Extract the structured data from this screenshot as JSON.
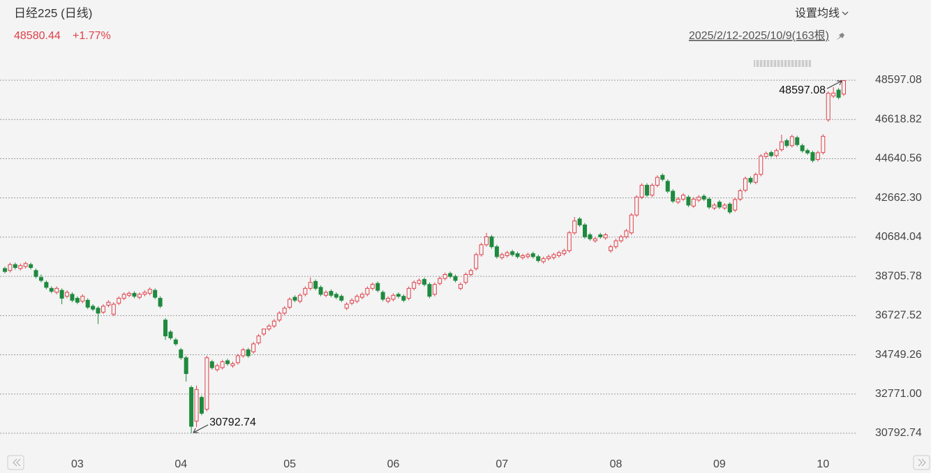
{
  "header": {
    "title": "日经225 (日线)",
    "price": "48580.44",
    "change": "+1.77%",
    "ma_button": "设置均线",
    "range": "2025/2/12-2025/10/9(163根)"
  },
  "chart_data": {
    "type": "candlestick",
    "up_color": "#e0404a",
    "down_color": "#1e8a3e",
    "grid": true,
    "ylim": [
      30792.74,
      48597.08
    ],
    "yticks": [
      30792.74,
      {
        "value": 32771,
        "label": "32771.00"
      },
      34749.26,
      36727.52,
      38705.78,
      40684.04,
      {
        "value": 42662.3,
        "label": "42662.30"
      },
      44640.56,
      46618.82,
      48597.08
    ],
    "categories": [
      null,
      null,
      null,
      null,
      null,
      null,
      null,
      null,
      null,
      null,
      null,
      null,
      null,
      null,
      "03",
      null,
      null,
      null,
      null,
      null,
      null,
      null,
      null,
      null,
      null,
      null,
      null,
      null,
      null,
      null,
      null,
      null,
      null,
      null,
      "04",
      null,
      null,
      null,
      null,
      null,
      null,
      null,
      null,
      null,
      null,
      null,
      null,
      null,
      null,
      null,
      null,
      null,
      null,
      null,
      null,
      "05",
      null,
      null,
      null,
      null,
      null,
      null,
      null,
      null,
      null,
      null,
      null,
      null,
      null,
      null,
      null,
      null,
      null,
      null,
      null,
      "06",
      null,
      null,
      null,
      null,
      null,
      null,
      null,
      null,
      null,
      null,
      null,
      null,
      null,
      null,
      null,
      null,
      null,
      null,
      null,
      null,
      "07",
      null,
      null,
      null,
      null,
      null,
      null,
      null,
      null,
      null,
      null,
      null,
      null,
      null,
      null,
      null,
      null,
      null,
      null,
      null,
      null,
      null,
      "08",
      null,
      null,
      null,
      null,
      null,
      null,
      null,
      null,
      null,
      null,
      null,
      null,
      null,
      null,
      null,
      null,
      null,
      null,
      null,
      "09",
      null,
      null,
      null,
      null,
      null,
      null,
      null,
      null,
      null,
      null,
      null,
      null,
      null,
      null,
      null,
      null,
      null,
      null,
      null,
      "10",
      null,
      null,
      null,
      null
    ],
    "open": [
      39100,
      39000,
      39300,
      39100,
      39200,
      39300,
      39000,
      38650,
      38400,
      38100,
      37900,
      38000,
      37700,
      37800,
      37600,
      37450,
      37500,
      37200,
      37100,
      36900,
      37250,
      36800,
      37350,
      37600,
      37750,
      37850,
      37650,
      37800,
      37850,
      38000,
      37600,
      36500,
      35900,
      35500,
      35000,
      34600,
      33100,
      31400,
      32600,
      32000,
      34400,
      34000,
      34100,
      34450,
      34200,
      34350,
      34700,
      35000,
      34900,
      35350,
      35800,
      36050,
      36200,
      36500,
      36850,
      37150,
      37650,
      37450,
      37800,
      38100,
      38450,
      38150,
      37750,
      37950,
      37800,
      37700,
      37100,
      37350,
      37450,
      37650,
      37800,
      38100,
      38350,
      37900,
      37450,
      37550,
      37800,
      37700,
      37600,
      38100,
      38350,
      38550,
      38300,
      37800,
      38350,
      38600,
      38850,
      38700,
      38100,
      38400,
      38800,
      39100,
      39800,
      40300,
      40700,
      40200,
      39650,
      39750,
      39950,
      39850,
      39650,
      39700,
      39850,
      39700,
      39450,
      39600,
      39650,
      39750,
      39850,
      40000,
      40900,
      41600,
      41300,
      40800,
      40500,
      40800,
      40650,
      40000,
      40200,
      40500,
      40700,
      40900,
      41800,
      42700,
      43300,
      42800,
      43300,
      43800,
      43500,
      43000,
      42450,
      42600,
      42700,
      42250,
      42550,
      42750,
      42600,
      42150,
      42450,
      42150,
      42350,
      42050,
      42600,
      43050,
      43650,
      43450,
      43850,
      44750,
      44950,
      44800,
      45100,
      45550,
      45300,
      45700,
      45300,
      45050,
      44950,
      44600,
      44950,
      46600,
      47800,
      48100,
      47900
    ],
    "high": [
      39200,
      39400,
      39400,
      39350,
      39450,
      39400,
      39100,
      38800,
      38500,
      38200,
      38200,
      38100,
      38000,
      37900,
      37700,
      37800,
      37600,
      37300,
      37200,
      37300,
      37500,
      37400,
      37700,
      37900,
      37950,
      37950,
      37900,
      38000,
      38150,
      38100,
      37700,
      36600,
      36000,
      35600,
      35100,
      34700,
      33200,
      33200,
      32700,
      34700,
      34500,
      34300,
      34500,
      34550,
      34400,
      34800,
      35100,
      35100,
      35400,
      35800,
      35900,
      36300,
      36550,
      36950,
      37200,
      37650,
      37750,
      37850,
      38200,
      38650,
      38550,
      38250,
      38000,
      38050,
      37900,
      37800,
      37400,
      37600,
      37800,
      37900,
      38200,
      38400,
      38450,
      38000,
      37700,
      37850,
      37900,
      37800,
      38200,
      38500,
      38600,
      38650,
      38400,
      38400,
      38700,
      38900,
      38950,
      38800,
      38400,
      38900,
      39100,
      39900,
      40400,
      40900,
      40800,
      40300,
      39900,
      40000,
      40050,
      39950,
      39850,
      39900,
      39950,
      39800,
      39700,
      39800,
      39900,
      40000,
      40100,
      41000,
      41700,
      41700,
      41400,
      40900,
      40700,
      40900,
      40900,
      40300,
      40600,
      40800,
      41100,
      41900,
      42800,
      43400,
      43400,
      43400,
      43800,
      43900,
      43600,
      43100,
      42700,
      42900,
      42800,
      42700,
      42800,
      42850,
      42700,
      42400,
      42550,
      42400,
      42450,
      42680,
      43120,
      43740,
      43750,
      43940,
      44870,
      45000,
      45050,
      45150,
      45850,
      45650,
      45850,
      45800,
      45400,
      45150,
      45050,
      45040,
      45870,
      48040,
      48250,
      48200,
      48597.08
    ],
    "low": [
      38850,
      38900,
      39050,
      39000,
      39100,
      39050,
      38600,
      38400,
      38050,
      37850,
      37800,
      37300,
      37600,
      37400,
      37300,
      37350,
      37050,
      36950,
      36300,
      36800,
      37150,
      36700,
      37250,
      37500,
      37650,
      37600,
      37550,
      37700,
      37750,
      37550,
      37100,
      35500,
      35500,
      35200,
      34500,
      33400,
      30792.74,
      31100,
      31700,
      31900,
      34000,
      33900,
      34000,
      34200,
      34100,
      34250,
      34600,
      34600,
      34800,
      35250,
      35700,
      35950,
      36100,
      36400,
      36750,
      37050,
      37400,
      37350,
      37700,
      38000,
      38000,
      37700,
      37650,
      37650,
      37550,
      37400,
      37000,
      37250,
      37350,
      37550,
      37700,
      38000,
      37900,
      37450,
      37350,
      37450,
      37600,
      37400,
      37500,
      38000,
      38250,
      38200,
      37600,
      37700,
      38250,
      38500,
      38600,
      38400,
      38000,
      38300,
      38700,
      39000,
      39700,
      40200,
      40100,
      39600,
      39550,
      39650,
      39700,
      39600,
      39550,
      39600,
      39600,
      39400,
      39350,
      39500,
      39550,
      39650,
      39750,
      39900,
      40800,
      41200,
      40600,
      40500,
      40400,
      40600,
      40550,
      39900,
      40100,
      40400,
      40600,
      40800,
      41700,
      42600,
      42700,
      42700,
      43200,
      43500,
      42900,
      42400,
      42350,
      42500,
      42200,
      42150,
      42450,
      42500,
      42100,
      42050,
      42100,
      42050,
      41850,
      41950,
      42500,
      42950,
      43350,
      43350,
      43750,
      44650,
      44700,
      44700,
      45000,
      45200,
      45200,
      45250,
      44940,
      44830,
      44450,
      44500,
      44850,
      46500,
      47700,
      47630,
      47800
    ],
    "close": [
      38950,
      39300,
      39150,
      39250,
      39350,
      39150,
      38700,
      38500,
      38150,
      37950,
      38100,
      37600,
      37900,
      37500,
      37400,
      37700,
      37150,
      37050,
      36850,
      37200,
      37400,
      37300,
      37600,
      37800,
      37850,
      37700,
      37800,
      37900,
      38050,
      37650,
      37200,
      35700,
      35600,
      35300,
      34600,
      33800,
      31140,
      33000,
      31800,
      34600,
      34100,
      34200,
      34400,
      34300,
      34300,
      34700,
      35000,
      34700,
      35300,
      35700,
      36050,
      36200,
      36450,
      36850,
      37100,
      37550,
      37500,
      37750,
      38100,
      38400,
      38100,
      37800,
      37900,
      37750,
      37650,
      37500,
      37300,
      37500,
      37700,
      37800,
      38100,
      38300,
      38000,
      37550,
      37600,
      37750,
      37700,
      37500,
      38100,
      38400,
      38500,
      38300,
      37700,
      38300,
      38600,
      38800,
      38700,
      38500,
      38300,
      38800,
      39000,
      39800,
      40300,
      40700,
      40200,
      39700,
      39800,
      39900,
      39800,
      39700,
      39750,
      39800,
      39700,
      39500,
      39600,
      39700,
      39800,
      39900,
      40000,
      40900,
      41500,
      41300,
      40700,
      40600,
      40600,
      40700,
      40800,
      40200,
      40500,
      40700,
      41000,
      41800,
      42700,
      43300,
      42800,
      43300,
      43700,
      43600,
      43000,
      42500,
      42600,
      42800,
      42300,
      42600,
      42700,
      42600,
      42200,
      42300,
      42200,
      42300,
      41950,
      42580,
      43020,
      43640,
      43460,
      43840,
      44770,
      44900,
      44790,
      45050,
      45490,
      45300,
      45750,
      45350,
      45040,
      44930,
      44550,
      44940,
      45770,
      47940,
      47950,
      47730,
      48580
    ]
  }
}
